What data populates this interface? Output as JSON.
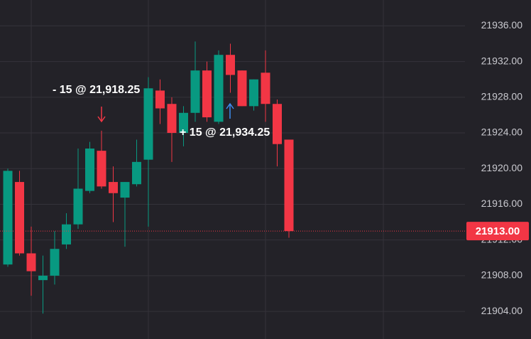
{
  "chart_data": {
    "type": "candlestick",
    "up_color": "#089981",
    "down_color": "#f23645",
    "series": [
      {
        "open": [
          21909.25,
          21918.5,
          21910.5,
          21907.5,
          21908,
          21911.5,
          21913.75,
          21917.5,
          21922,
          21918.5,
          21916.75,
          21918.25,
          21921,
          21928.75,
          21927.25,
          21924,
          21926.25,
          21931,
          21925.25,
          21932.75,
          21931,
          21927,
          21930.75,
          21927.25,
          21923.25
        ],
        "high": [
          21920,
          21919.75,
          21913.5,
          21910.25,
          21913,
          21915,
          21922.25,
          21923,
          21924.25,
          21920.25,
          21918.5,
          21923.25,
          21930.25,
          21930,
          21928,
          21927,
          21934.25,
          21932,
          21933.25,
          21934,
          21931,
          21930,
          21933.25,
          21927.75,
          21923.25
        ],
        "low": [
          21909,
          21910.25,
          21905.75,
          21903.75,
          21907,
          21911,
          21913.25,
          21917.25,
          21917.75,
          21914,
          21911.25,
          21918,
          21913.5,
          21925,
          21920.75,
          21922.5,
          21925.25,
          21925.25,
          21925,
          21928.5,
          21927,
          21926.5,
          21925.25,
          21920.25,
          21912.25
        ],
        "close": [
          21919.75,
          21910.5,
          21908.5,
          21908,
          21911,
          21913.75,
          21917.75,
          21922.25,
          21918,
          21917.25,
          21918.5,
          21920.75,
          21929,
          21926.75,
          21924,
          21926.25,
          21931,
          21925.75,
          21932.75,
          21930.5,
          21927,
          21930,
          21927.25,
          21922.75,
          21913
        ]
      }
    ],
    "ylim": [
      21900.9,
      21938.9
    ],
    "yticks": [
      {
        "value": 21904,
        "label": "21904.00"
      },
      {
        "value": 21908,
        "label": "21908.00"
      },
      {
        "value": 21912,
        "label": "21912.00"
      },
      {
        "value": 21916,
        "label": "21916.00"
      },
      {
        "value": 21920,
        "label": "21920.00"
      },
      {
        "value": 21924,
        "label": "21924.00"
      },
      {
        "value": 21928,
        "label": "21928.00"
      },
      {
        "value": 21932,
        "label": "21932.00"
      },
      {
        "value": 21936,
        "label": "21936.00"
      }
    ],
    "grid": true,
    "last_price": {
      "value": 21913,
      "label": "21913.00"
    },
    "annotations": [
      "- 15 @ 21,918.25",
      "+ 15 @ 21,934.25"
    ]
  }
}
